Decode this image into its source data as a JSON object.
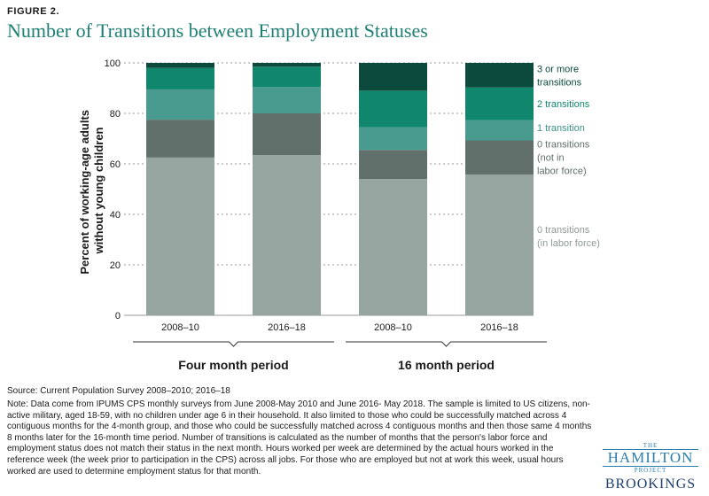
{
  "figure_label": "FIGURE 2.",
  "title": "Number of Transitions between Employment Statuses",
  "source": "Source: Current Population Survey 2008–2010; 2016–18",
  "note": "Note: Data come from IPUMS CPS monthly surveys from June 2008-May 2010 and June 2016- May 2018. The sample is limited to US citizens, non-active military, aged 18-59, with no children under age 6 in their household. It also limited to those who could be successfully matched across 4 contiguous months for the 4-month group, and those who could be successfully matched across 4 contiguous months and then those same 4 months 8 months later for the 16-month time period. Number of transitions is calculated as the number of months that the person's labor force and employment status does not match their status in the next month. Hours worked per week are determined by the actual hours worked in the reference week (the week prior to participation in the CPS) across all jobs. For those who are employed but not at work this week, usual hours worked are used to determine employment status for that month.",
  "logo": {
    "the": "THE",
    "hamilton": "HAMILTON",
    "project": "PROJECT",
    "brookings": "BROOKINGS"
  },
  "chart_data": {
    "type": "bar",
    "stacked": true,
    "ylabel": "Percent of working-age adults without young children",
    "ylim": [
      0,
      100
    ],
    "yticks": [
      0,
      20,
      40,
      60,
      80,
      100
    ],
    "categories": [
      "2008–10",
      "2016–18",
      "2008–10",
      "2016–18"
    ],
    "groups": [
      {
        "label": "Four month period",
        "categories": [
          0,
          1
        ]
      },
      {
        "label": "16 month period",
        "categories": [
          2,
          3
        ]
      }
    ],
    "series": [
      {
        "name": "0 transitions (in labor force)",
        "label_lines": [
          "0 transitions",
          "(in labor force)"
        ],
        "color": "#97a5a0",
        "label_color": "#8c9a95",
        "values": [
          62.5,
          63.5,
          54.0,
          55.8
        ]
      },
      {
        "name": "0 transitions (not in labor force)",
        "label_lines": [
          "0 transitions",
          "(not in",
          "labor force)"
        ],
        "color": "#62706c",
        "label_color": "#5e6c68",
        "values": [
          15.0,
          16.5,
          11.5,
          13.5
        ]
      },
      {
        "name": "1 transition",
        "label_lines": [
          "1 transition"
        ],
        "color": "#4a9b8f",
        "label_color": "#3d9287",
        "values": [
          12.0,
          10.5,
          9.0,
          8.0
        ]
      },
      {
        "name": "2 transitions",
        "label_lines": [
          "2 transitions"
        ],
        "color": "#10866d",
        "label_color": "#10866d",
        "values": [
          8.5,
          8.0,
          14.5,
          13.0
        ]
      },
      {
        "name": "3 or more transitions",
        "label_lines": [
          "3 or more",
          "transitions"
        ],
        "color": "#0c4a3d",
        "label_color": "#0c4a3d",
        "values": [
          2.0,
          1.5,
          11.0,
          9.7
        ]
      }
    ],
    "grid": true,
    "legend": "right (labels beside last bar)"
  }
}
